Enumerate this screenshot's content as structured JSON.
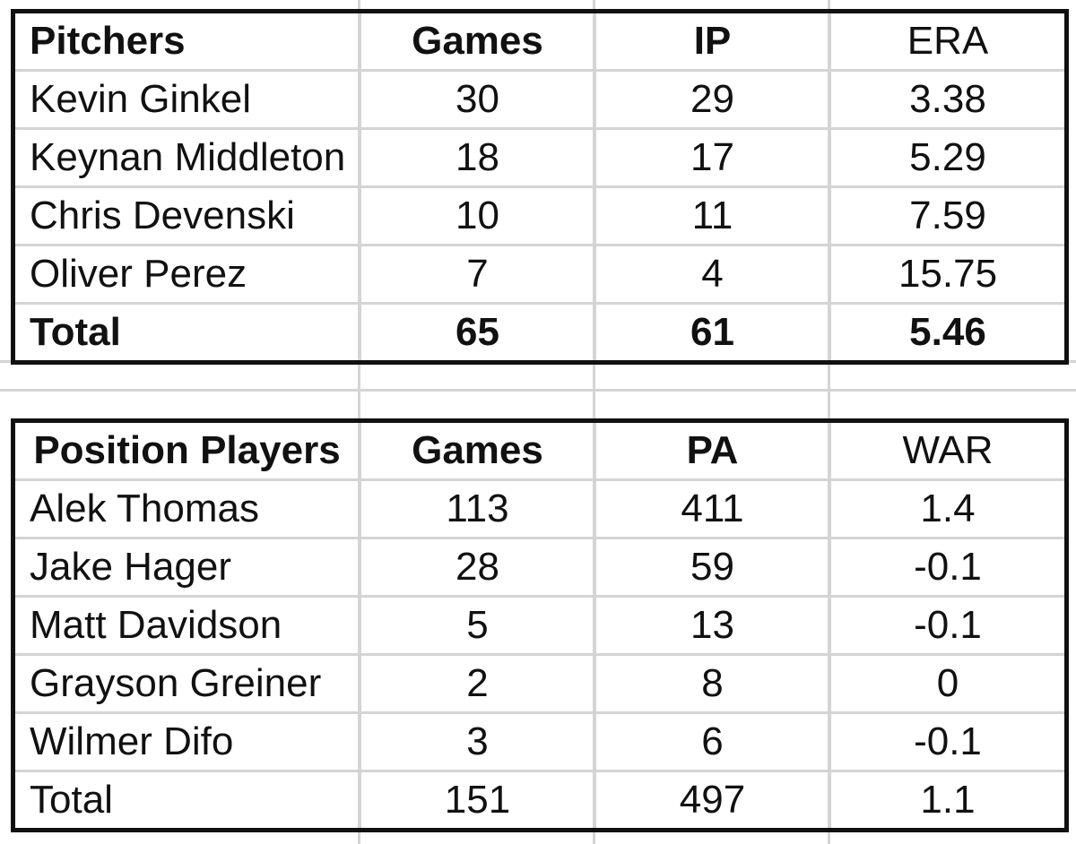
{
  "pitchers": {
    "headers": [
      "Pitchers",
      "Games",
      "IP",
      "ERA"
    ],
    "rows": [
      [
        "Kevin Ginkel",
        "30",
        "29",
        "3.38"
      ],
      [
        "Keynan Middleton",
        "18",
        "17",
        "5.29"
      ],
      [
        "Chris Devenski",
        "10",
        "11",
        "7.59"
      ],
      [
        "Oliver Perez",
        "7",
        "4",
        "15.75"
      ]
    ],
    "total": [
      "Total",
      "65",
      "61",
      "5.46"
    ]
  },
  "position_players": {
    "headers": [
      "Position Players",
      "Games",
      "PA",
      "WAR"
    ],
    "rows": [
      [
        "Alek Thomas",
        "113",
        "411",
        "1.4"
      ],
      [
        "Jake Hager",
        "28",
        "59",
        "-0.1"
      ],
      [
        "Matt Davidson",
        "5",
        "13",
        "-0.1"
      ],
      [
        "Grayson Greiner",
        "2",
        "8",
        "0"
      ],
      [
        "Wilmer Difo",
        "3",
        "6",
        "-0.1"
      ]
    ],
    "total": [
      "Total",
      "151",
      "497",
      "1.1"
    ]
  }
}
